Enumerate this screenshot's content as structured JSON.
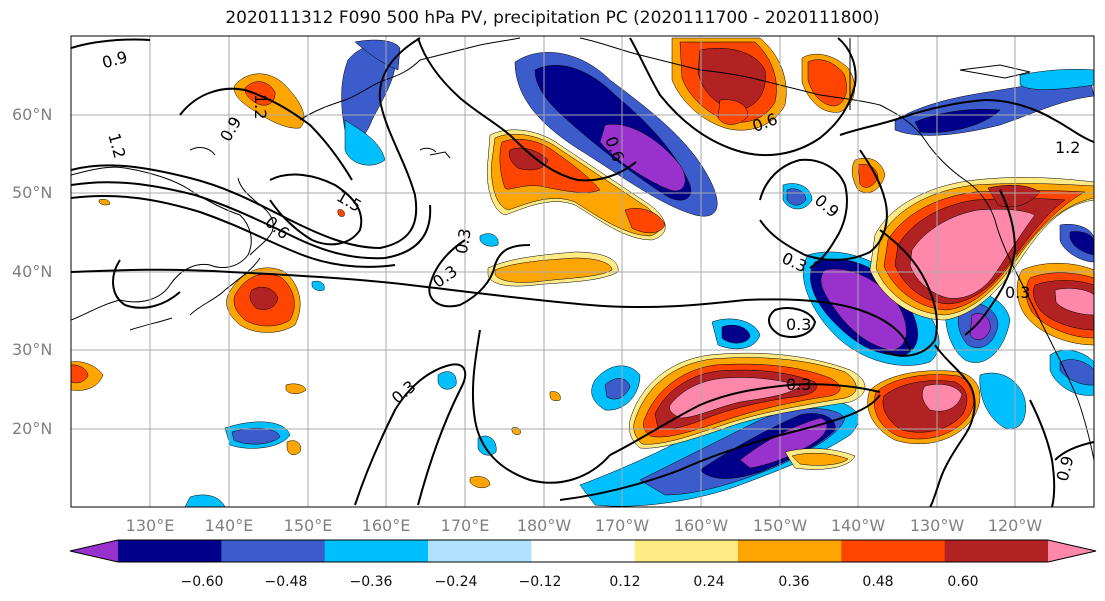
{
  "title": "2020111312 F090 500 hPa PV, precipitation PC (2020111700 - 2020111800)",
  "lat_labels": [
    "60°N",
    "50°N",
    "40°N",
    "30°N",
    "20°N"
  ],
  "lon_labels": [
    "130°E",
    "140°E",
    "150°E",
    "160°E",
    "170°E",
    "180°W",
    "170°W",
    "160°W",
    "150°W",
    "140°W",
    "130°W",
    "120°W"
  ],
  "colorbar": {
    "colors": [
      "#9932cc",
      "#00008b",
      "#3c5ccc",
      "#00bfff",
      "#b0e2ff",
      "#ffffff",
      "#ffeb86",
      "#ffa500",
      "#ff4500",
      "#b22222",
      "#ff88aa"
    ],
    "tick_labels": [
      "−0.60",
      "−0.48",
      "−0.36",
      "−0.24",
      "−0.12",
      "0.12",
      "0.24",
      "0.36",
      "0.48",
      "0.60"
    ]
  },
  "contour_labels": [
    "0.9",
    "1.2",
    "1.2",
    "0.9",
    "1.5",
    "0.6",
    "0.3",
    "0.3",
    "0.6",
    "0.6",
    "1.2",
    "0.9",
    "0.3",
    "0.3",
    "0.3",
    "0.3",
    "0.3",
    "0.9"
  ],
  "colors": {
    "contour": "#000000",
    "grid": "#aaaaaa",
    "coast": "#000000"
  }
}
